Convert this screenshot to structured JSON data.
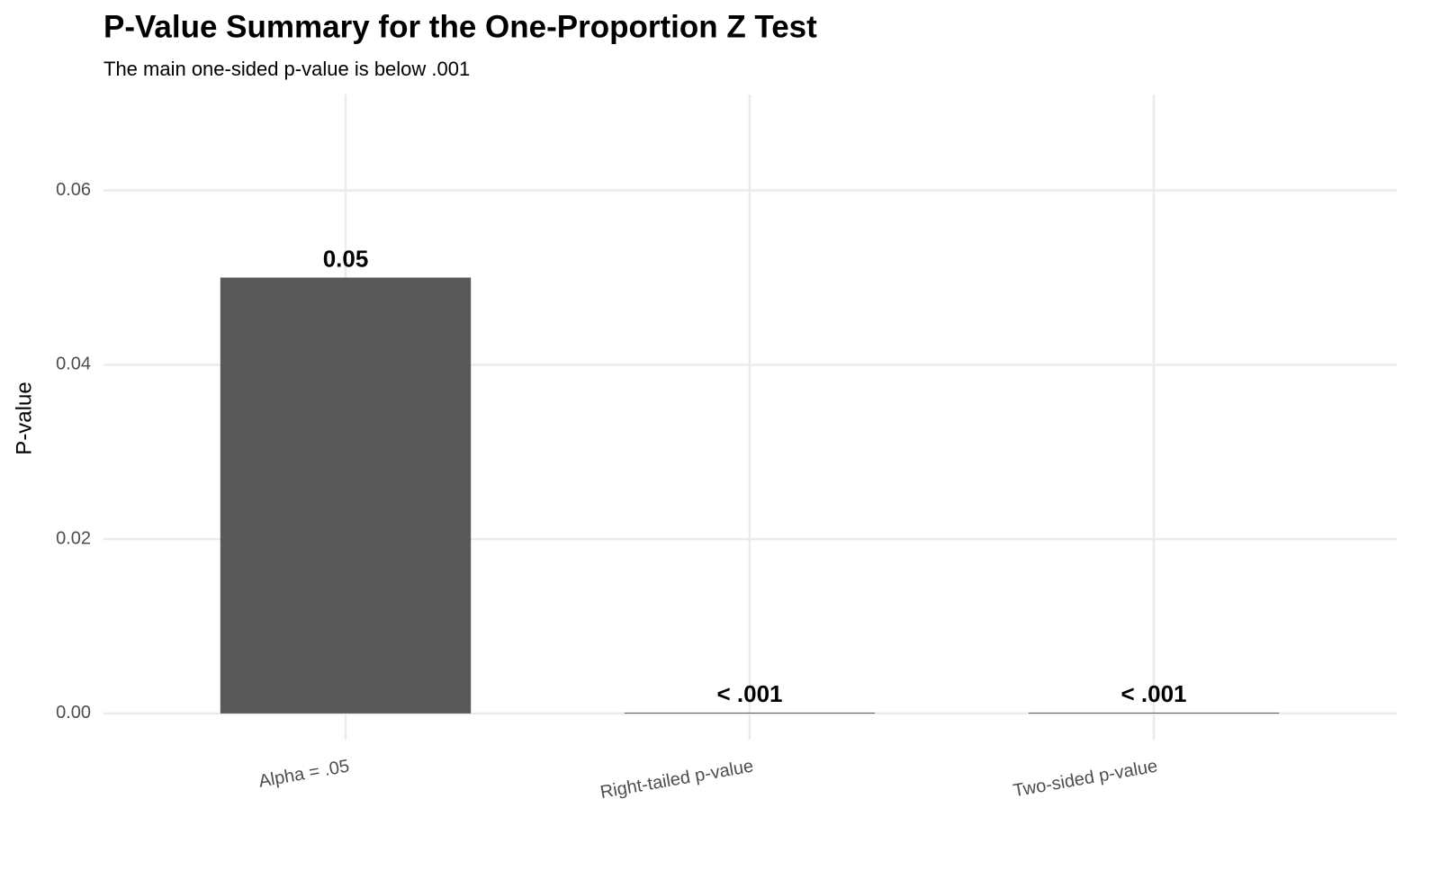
{
  "chart_data": {
    "type": "bar",
    "title": "P-Value Summary for the One-Proportion Z Test",
    "subtitle": "The main one-sided p-value is below .001",
    "y_label": "P-value",
    "categories": [
      "Alpha = .05",
      "Right-tailed p-value",
      "Two-sided p-value"
    ],
    "values": [
      0.05,
      0.0001,
      0.0001
    ],
    "value_labels": [
      "0.05",
      "< .001",
      "< .001"
    ],
    "color": "#595959",
    "ylim": [
      -0.003,
      0.071
    ],
    "yticks": [
      {
        "value": 0,
        "label": "0.00"
      },
      {
        "value": 0.02,
        "label": "0.02"
      },
      {
        "value": 0.04,
        "label": "0.04"
      },
      {
        "value": 0.06,
        "label": "0.06"
      }
    ],
    "grid": true
  }
}
